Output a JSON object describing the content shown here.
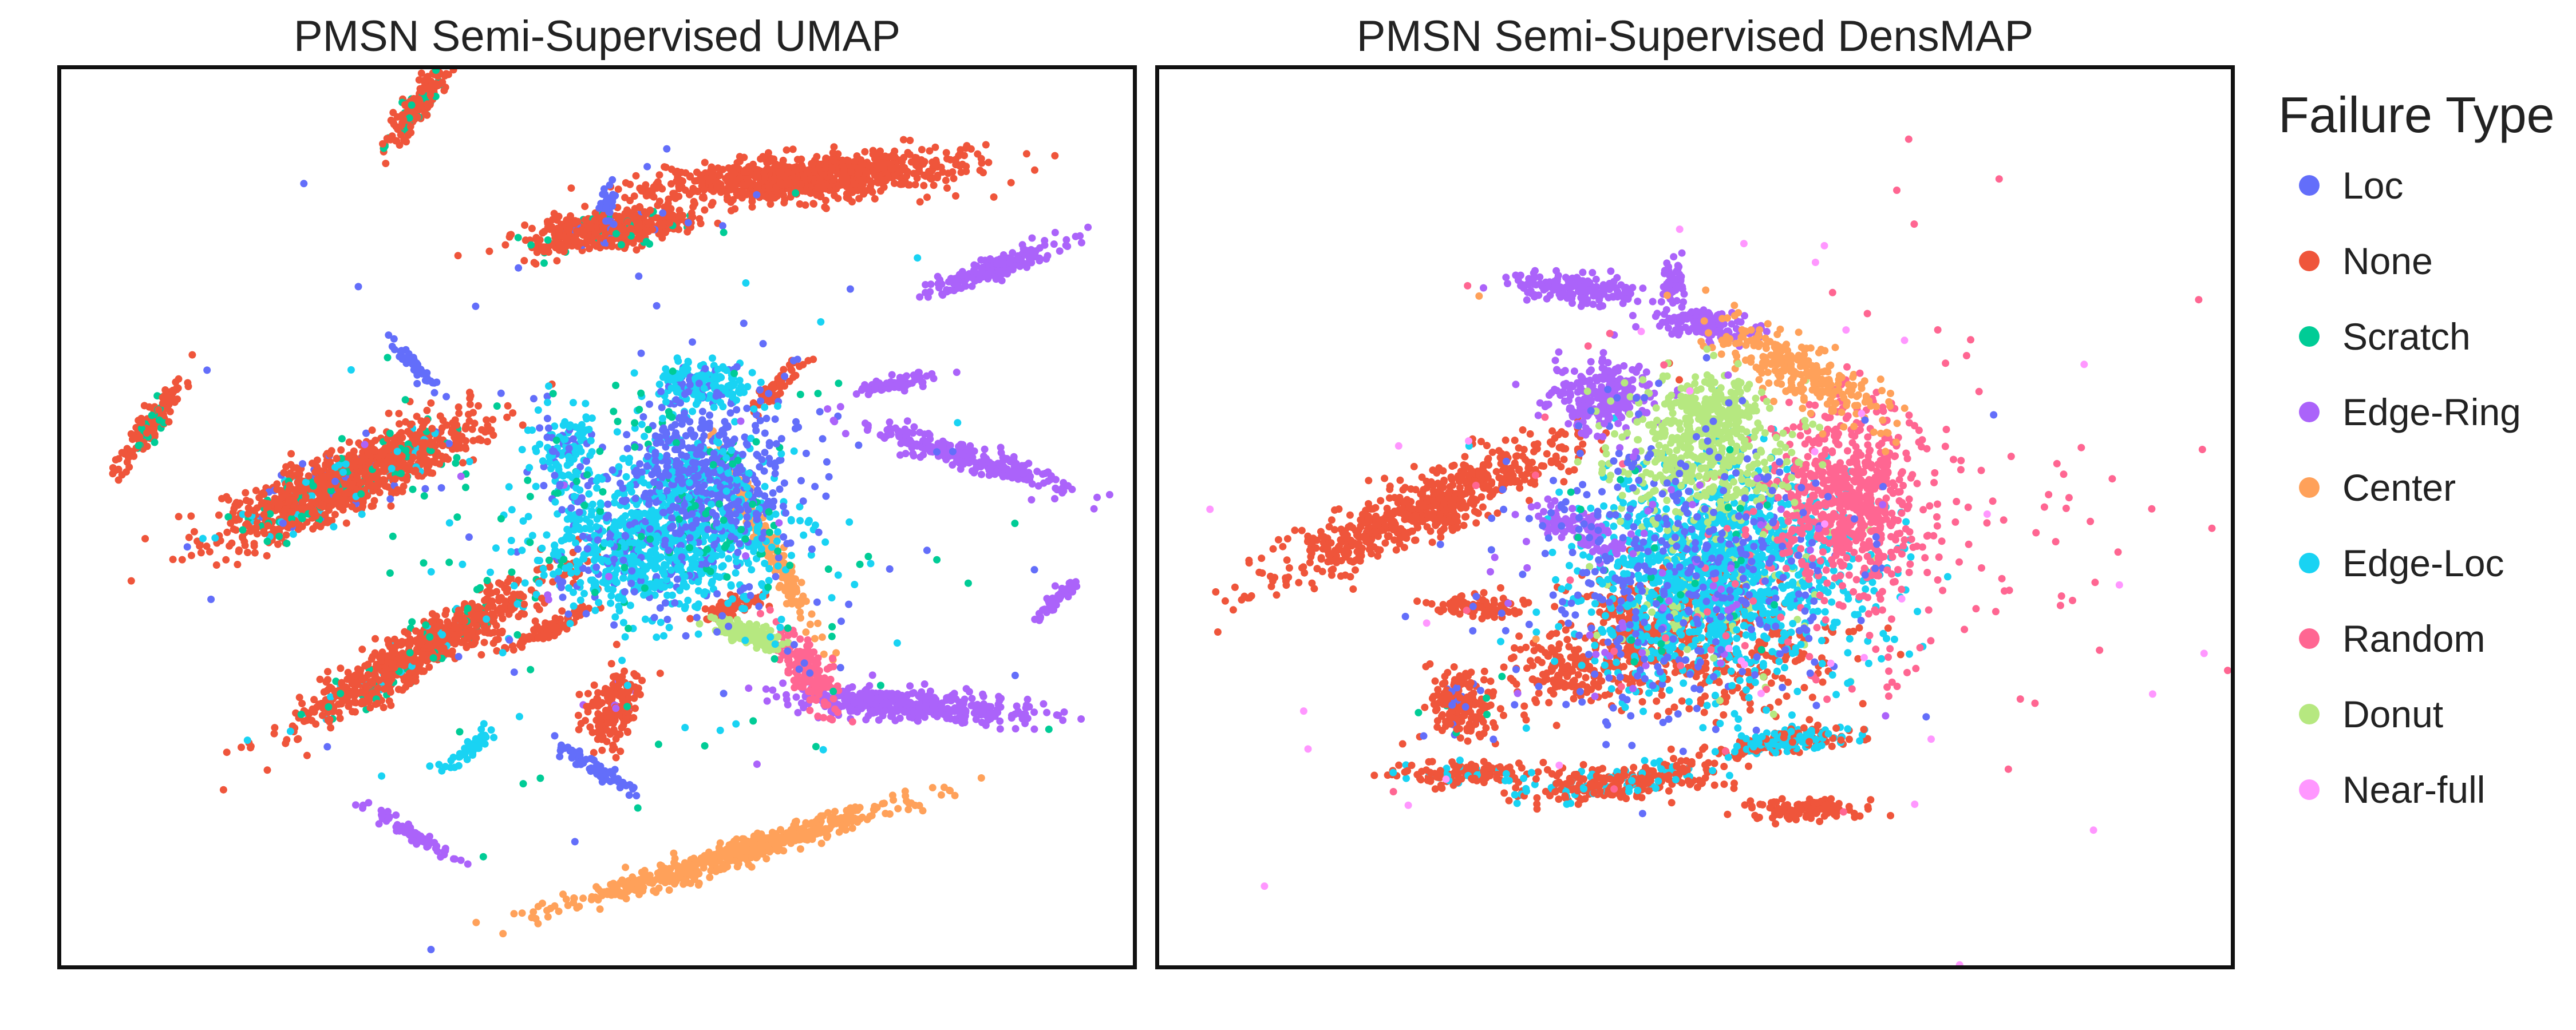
{
  "legend": {
    "title": "Failure Type",
    "items": [
      {
        "label": "Loc",
        "color": "#636efa"
      },
      {
        "label": "None",
        "color": "#ef553b"
      },
      {
        "label": "Scratch",
        "color": "#00cc96"
      },
      {
        "label": "Edge-Ring",
        "color": "#ab63fa"
      },
      {
        "label": "Center",
        "color": "#ffa15a"
      },
      {
        "label": "Edge-Loc",
        "color": "#19d3f3"
      },
      {
        "label": "Random",
        "color": "#ff6692"
      },
      {
        "label": "Donut",
        "color": "#b6e880"
      },
      {
        "label": "Near-full",
        "color": "#ff97ff"
      }
    ]
  },
  "chart_data": [
    {
      "type": "scatter",
      "title": "PMSN Semi-Supervised UMAP",
      "xlabel": "",
      "ylabel": "",
      "axes_ticks": false,
      "grid": false,
      "legend_position": "right",
      "xlim": [
        0,
        100
      ],
      "ylim": [
        0,
        100
      ],
      "clusters": [
        {
          "label": "None",
          "cx": 26.5,
          "cy": 54,
          "sx": 1.6,
          "sy": 6.8,
          "rot": -62,
          "n": 1100,
          "mix": {
            "Loc": 0.04,
            "Scratch": 0.08,
            "Edge-Loc": 0.04
          }
        },
        {
          "label": "None",
          "cx": 70,
          "cy": 88,
          "sx": 1.2,
          "sy": 7.0,
          "rot": -85,
          "n": 950,
          "mix": {}
        },
        {
          "label": "None",
          "cx": 50.5,
          "cy": 82,
          "sx": 1.0,
          "sy": 4.0,
          "rot": -80,
          "n": 500,
          "mix": {
            "Scratch": 0.08,
            "Loc": 0.04
          }
        },
        {
          "label": "None",
          "cx": 33.5,
          "cy": 35,
          "sx": 1.2,
          "sy": 7.2,
          "rot": -55,
          "n": 800,
          "mix": {
            "Scratch": 0.07,
            "Edge-Loc": 0.04
          }
        },
        {
          "label": "None",
          "cx": 33.5,
          "cy": 96.5,
          "sx": 0.6,
          "sy": 2.8,
          "rot": -30,
          "n": 220,
          "mix": {
            "Scratch": 0.15
          }
        },
        {
          "label": "None",
          "cx": 8.5,
          "cy": 60.5,
          "sx": 0.5,
          "sy": 2.8,
          "rot": -30,
          "n": 150,
          "mix": {
            "Scratch": 0.2
          }
        },
        {
          "label": "None",
          "cx": 51.5,
          "cy": 28.5,
          "sx": 1.2,
          "sy": 2.2,
          "rot": -20,
          "n": 180,
          "mix": {
            "Edge-Ring": 0.05
          }
        },
        {
          "label": "None",
          "cx": 45.5,
          "cy": 37.5,
          "sx": 0.5,
          "sy": 2.2,
          "rot": -60,
          "n": 90,
          "mix": {}
        },
        {
          "label": "None",
          "cx": 62.5,
          "cy": 40,
          "sx": 0.5,
          "sy": 1.7,
          "rot": -70,
          "n": 70,
          "mix": {}
        },
        {
          "label": "None",
          "cx": 67,
          "cy": 65,
          "sx": 0.4,
          "sy": 2.0,
          "rot": -40,
          "n": 60,
          "mix": {
            "Loc": 0.1
          }
        },
        {
          "label": "Center",
          "cx": 63,
          "cy": 12.5,
          "sx": 0.7,
          "sy": 8.5,
          "rot": -70,
          "n": 550,
          "mix": {}
        },
        {
          "label": "Center",
          "cx": 66,
          "cy": 47,
          "sx": 0.5,
          "sy": 5.5,
          "rot": 25,
          "n": 200,
          "mix": {}
        },
        {
          "label": "Edge-Ring",
          "cx": 79.5,
          "cy": 29,
          "sx": 0.9,
          "sy": 6.0,
          "rot": 85,
          "n": 400,
          "mix": {}
        },
        {
          "label": "Edge-Ring",
          "cx": 85,
          "cy": 56.5,
          "sx": 0.7,
          "sy": 5.2,
          "rot": 70,
          "n": 260,
          "mix": {}
        },
        {
          "label": "Edge-Ring",
          "cx": 87.5,
          "cy": 78,
          "sx": 0.6,
          "sy": 3.6,
          "rot": -65,
          "n": 180,
          "mix": {}
        },
        {
          "label": "Edge-Ring",
          "cx": 78,
          "cy": 65,
          "sx": 0.4,
          "sy": 2.0,
          "rot": -75,
          "n": 70,
          "mix": {}
        },
        {
          "label": "Edge-Ring",
          "cx": 93,
          "cy": 41,
          "sx": 0.3,
          "sy": 1.5,
          "rot": -40,
          "n": 60,
          "mix": {}
        },
        {
          "label": "Edge-Ring",
          "cx": 33,
          "cy": 14.5,
          "sx": 0.3,
          "sy": 2.6,
          "rot": 55,
          "n": 80,
          "mix": {}
        },
        {
          "label": "Random",
          "cx": 69.5,
          "cy": 33,
          "sx": 1.0,
          "sy": 2.6,
          "rot": 30,
          "n": 170,
          "mix": {}
        },
        {
          "label": "Donut",
          "cx": 64,
          "cy": 37,
          "sx": 0.6,
          "sy": 1.8,
          "rot": 70,
          "n": 130,
          "mix": {}
        },
        {
          "label": "Edge-Loc",
          "cx": 56,
          "cy": 47,
          "sx": 6.0,
          "sy": 4.0,
          "rot": 0,
          "n": 900,
          "mix": {
            "Loc": 0.15,
            "Scratch": 0.05
          }
        },
        {
          "label": "Loc",
          "cx": 60,
          "cy": 55,
          "sx": 4.0,
          "sy": 4.0,
          "rot": 0,
          "n": 600,
          "mix": {
            "Edge-Loc": 0.25,
            "Scratch": 0.05
          }
        },
        {
          "label": "Edge-Loc",
          "cx": 60,
          "cy": 65,
          "sx": 2.0,
          "sy": 1.2,
          "rot": 0,
          "n": 180,
          "mix": {
            "Loc": 0.2
          }
        },
        {
          "label": "Edge-Loc",
          "cx": 47,
          "cy": 57,
          "sx": 1.5,
          "sy": 3.0,
          "rot": 10,
          "n": 140,
          "mix": {
            "Loc": 0.3
          }
        },
        {
          "label": "Loc",
          "cx": 50,
          "cy": 22,
          "sx": 0.4,
          "sy": 2.2,
          "rot": 55,
          "n": 70,
          "mix": {}
        },
        {
          "label": "Loc",
          "cx": 33,
          "cy": 67,
          "sx": 0.4,
          "sy": 1.8,
          "rot": 40,
          "n": 50,
          "mix": {}
        },
        {
          "label": "Loc",
          "cx": 51,
          "cy": 85,
          "sx": 0.4,
          "sy": 1.0,
          "rot": 0,
          "n": 30,
          "mix": {}
        },
        {
          "label": "Edge-Loc",
          "cx": 38.5,
          "cy": 24.5,
          "sx": 0.4,
          "sy": 1.6,
          "rot": -50,
          "n": 50,
          "mix": {}
        },
        {
          "label": "Scratch",
          "cx": 56,
          "cy": 50,
          "sx": 16,
          "sy": 15,
          "rot": 0,
          "n": 200,
          "mix": {
            "Loc": 0.35,
            "Edge-Loc": 0.2,
            "Edge-Ring": 0.05
          }
        }
      ]
    },
    {
      "type": "scatter",
      "title": "PMSN Semi-Supervised DensMAP",
      "xlabel": "",
      "ylabel": "",
      "axes_ticks": false,
      "grid": false,
      "legend_position": "right",
      "xlim": [
        0,
        100
      ],
      "ylim": [
        0,
        100
      ],
      "clusters": [
        {
          "label": "None",
          "cx": 24.5,
          "cy": 51,
          "sx": 1.6,
          "sy": 8.0,
          "rot": -63,
          "n": 650,
          "mix": {}
        },
        {
          "label": "None",
          "cx": 43.5,
          "cy": 20.5,
          "sx": 0.9,
          "sy": 5.0,
          "rot": -80,
          "n": 280,
          "mix": {
            "Edge-Loc": 0.3
          }
        },
        {
          "label": "None",
          "cx": 60.5,
          "cy": 17.5,
          "sx": 0.6,
          "sy": 2.8,
          "rot": -90,
          "n": 120,
          "mix": {}
        },
        {
          "label": "None",
          "cx": 28.5,
          "cy": 21.5,
          "sx": 0.6,
          "sy": 3.5,
          "rot": -90,
          "n": 150,
          "mix": {
            "Edge-Loc": 0.15
          }
        },
        {
          "label": "None",
          "cx": 28.5,
          "cy": 29,
          "sx": 1.8,
          "sy": 2.0,
          "rot": 0,
          "n": 180,
          "mix": {
            "Loc": 0.1,
            "Scratch": 0.05
          }
        },
        {
          "label": "None",
          "cx": 30,
          "cy": 40,
          "sx": 2.0,
          "sy": 0.6,
          "rot": 0,
          "n": 90,
          "mix": {}
        },
        {
          "label": "None",
          "cx": 45,
          "cy": 38,
          "sx": 4.0,
          "sy": 3.5,
          "rot": 0,
          "n": 250,
          "mix": {}
        },
        {
          "label": "None",
          "cx": 38,
          "cy": 33,
          "sx": 3.0,
          "sy": 2.0,
          "rot": 0,
          "n": 150,
          "mix": {}
        },
        {
          "label": "None",
          "cx": 53,
          "cy": 35,
          "sx": 5.5,
          "sy": 3.5,
          "rot": 0,
          "n": 250,
          "mix": {}
        },
        {
          "label": "None",
          "cx": 57.5,
          "cy": 24.5,
          "sx": 0.5,
          "sy": 3.2,
          "rot": -82,
          "n": 120,
          "mix": {
            "Edge-Loc": 0.4
          }
        },
        {
          "label": "Edge-Loc",
          "cx": 52,
          "cy": 44,
          "sx": 6.5,
          "sy": 6.0,
          "rot": 0,
          "n": 1500,
          "mix": {
            "Donut": 0.08,
            "Loc": 0.08
          }
        },
        {
          "label": "Random",
          "cx": 64,
          "cy": 52,
          "sx": 3.2,
          "sy": 5.0,
          "rot": 0,
          "n": 600,
          "mix": {}
        },
        {
          "label": "Random",
          "cx": 66,
          "cy": 48,
          "sx": 10,
          "sy": 10,
          "rot": 0,
          "n": 180,
          "mix": {}
        },
        {
          "label": "Edge-Ring",
          "cx": 41,
          "cy": 63.5,
          "sx": 2.5,
          "sy": 2.0,
          "rot": 0,
          "n": 250,
          "mix": {}
        },
        {
          "label": "Edge-Ring",
          "cx": 39,
          "cy": 75.5,
          "sx": 0.8,
          "sy": 3.0,
          "rot": 85,
          "n": 160,
          "mix": {}
        },
        {
          "label": "Edge-Ring",
          "cx": 51,
          "cy": 71.5,
          "sx": 0.8,
          "sy": 2.5,
          "rot": 80,
          "n": 140,
          "mix": {}
        },
        {
          "label": "Edge-Ring",
          "cx": 39.5,
          "cy": 48.5,
          "sx": 1.0,
          "sy": 2.5,
          "rot": 60,
          "n": 120,
          "mix": {}
        },
        {
          "label": "Edge-Ring",
          "cx": 48,
          "cy": 76,
          "sx": 0.5,
          "sy": 1.2,
          "rot": 0,
          "n": 50,
          "mix": {}
        },
        {
          "label": "Center",
          "cx": 59.5,
          "cy": 66.5,
          "sx": 1.5,
          "sy": 4.5,
          "rot": 55,
          "n": 260,
          "mix": {}
        },
        {
          "label": "Donut",
          "cx": 51,
          "cy": 57,
          "sx": 4.0,
          "sy": 4.0,
          "rot": 0,
          "n": 400,
          "mix": {}
        },
        {
          "label": "Donut",
          "cx": 52,
          "cy": 62,
          "sx": 1.8,
          "sy": 1.6,
          "rot": 0,
          "n": 150,
          "mix": {}
        },
        {
          "label": "Loc",
          "cx": 48,
          "cy": 44,
          "sx": 8.0,
          "sy": 9.0,
          "rot": 0,
          "n": 400,
          "mix": {
            "Edge-Ring": 0.1,
            "Scratch": 0.05
          }
        },
        {
          "label": "Edge-Loc",
          "cx": 59.5,
          "cy": 25.5,
          "sx": 0.5,
          "sy": 2.5,
          "rot": -80,
          "n": 100,
          "mix": {
            "None": 0.3
          }
        },
        {
          "label": "Near-full",
          "cx": 58,
          "cy": 50,
          "sx": 24,
          "sy": 20,
          "rot": 0,
          "n": 70,
          "mix": {
            "Random": 0.4,
            "Center": 0.05,
            "Loc": 0.05
          }
        }
      ]
    }
  ],
  "panels": {
    "umap_title": "PMSN Semi-Supervised UMAP",
    "densmap_title": "PMSN Semi-Supervised DensMAP"
  }
}
